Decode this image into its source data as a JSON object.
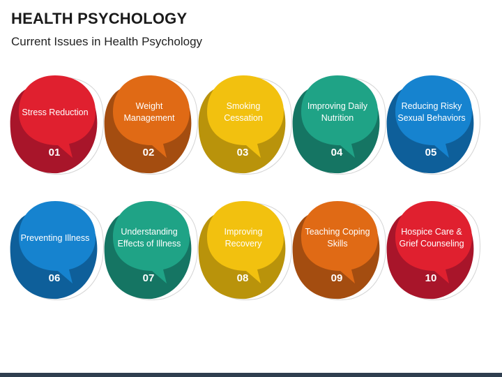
{
  "title": "HEALTH PSYCHOLOGY",
  "subtitle": "Current Issues in Health Psychology",
  "items": [
    {
      "number": "01",
      "label": "Stress Reduction",
      "color": "#e0202f",
      "dark": "#a8152a"
    },
    {
      "number": "02",
      "label": "Weight Management",
      "color": "#e06a15",
      "dark": "#a44d10"
    },
    {
      "number": "03",
      "label": "Smoking Cessation",
      "color": "#f2c10f",
      "dark": "#b9930b"
    },
    {
      "number": "04",
      "label": "Improving Daily Nutrition",
      "color": "#1fa386",
      "dark": "#157563"
    },
    {
      "number": "05",
      "label": "Reducing Risky Sexual Behaviors",
      "color": "#1683cf",
      "dark": "#0e5f9a"
    },
    {
      "number": "06",
      "label": "Preventing Illness",
      "color": "#1683cf",
      "dark": "#0e5f9a"
    },
    {
      "number": "07",
      "label": "Understanding Effects of Illness",
      "color": "#1fa386",
      "dark": "#157563"
    },
    {
      "number": "08",
      "label": "Improving Recovery",
      "color": "#f2c10f",
      "dark": "#b9930b"
    },
    {
      "number": "09",
      "label": "Teaching Coping Skills",
      "color": "#e06a15",
      "dark": "#a44d10"
    },
    {
      "number": "10",
      "label": "Hospice Care & Grief Counseling",
      "color": "#e0202f",
      "dark": "#a8152a"
    }
  ]
}
